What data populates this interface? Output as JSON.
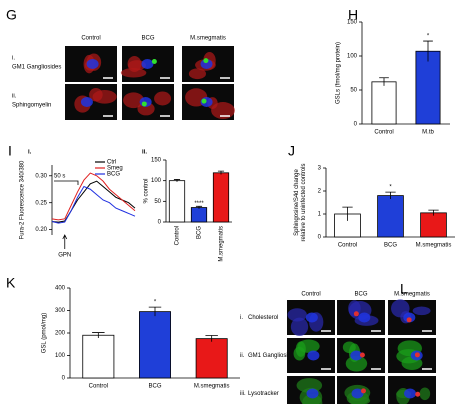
{
  "images": [
    {
      "label": "G",
      "columns": [
        "Control",
        "BCG",
        "M.smegmatis"
      ],
      "rows": [
        {
          "index": "i.",
          "name": "GM1 Gangliosides"
        },
        {
          "index": "ii.",
          "name": "Sphingomyelin"
        }
      ]
    },
    {
      "label": "L",
      "columns": [
        "Control",
        "BCG",
        "M.smegmatis"
      ],
      "rows": [
        {
          "index": "i.",
          "name": "Cholesterol"
        },
        {
          "index": "ii.",
          "name": "GM1 Gangliosides"
        },
        {
          "index": "iii.",
          "name": "Lysotracker"
        }
      ]
    }
  ],
  "chart_data": [
    {
      "type": "bar",
      "label": "H",
      "ylabel": [
        "GSLs (fmol/mg protein)"
      ],
      "categories": [
        "Control",
        "M.tb"
      ],
      "values": [
        62,
        107
      ],
      "errors": [
        6,
        15
      ],
      "colors": [
        "#ffffff",
        "#1f3fd8"
      ],
      "annotation_labels": [
        null,
        "*"
      ],
      "ylim": [
        0,
        150
      ],
      "yticks": [
        0,
        50,
        100,
        150
      ]
    },
    {
      "type": "line",
      "label": "I",
      "sublabel": "i.",
      "ylabel": [
        "Fura-2 Fluorescence 340/380"
      ],
      "x": [
        0,
        20,
        40,
        60,
        80,
        100,
        120,
        140,
        160,
        180,
        200,
        220,
        240,
        260
      ],
      "xlim": [
        0,
        260
      ],
      "series": [
        {
          "name": "Ctrl",
          "color": "#000000",
          "values": [
            0.215,
            0.214,
            0.216,
            0.235,
            0.255,
            0.27,
            0.285,
            0.29,
            0.28,
            0.27,
            0.26,
            0.255,
            0.25,
            0.24
          ]
        },
        {
          "name": "Smeg",
          "color": "#e02020",
          "values": [
            0.22,
            0.218,
            0.22,
            0.245,
            0.27,
            0.292,
            0.305,
            0.3,
            0.29,
            0.275,
            0.265,
            0.255,
            0.245,
            0.235
          ]
        },
        {
          "name": "BCG",
          "color": "#2030e0",
          "values": [
            0.215,
            0.212,
            0.214,
            0.235,
            0.26,
            0.28,
            0.275,
            0.265,
            0.255,
            0.25,
            0.24,
            0.235,
            0.23,
            0.225
          ]
        }
      ],
      "scale_label": "50 s",
      "arrow_label": "GPN",
      "ylim": [
        0.19,
        0.32
      ],
      "yticks": [
        {
          "value": 0.2,
          "label": "0.20"
        },
        0.25,
        {
          "value": 0.3,
          "label": "0.30"
        }
      ]
    },
    {
      "type": "bar",
      "sublabel": "ii.",
      "ylabel": [
        "% control"
      ],
      "categories": [
        "Control",
        "BCG",
        "M.smegmatis"
      ],
      "values": [
        100,
        35,
        119
      ],
      "errors": [
        3,
        3,
        4
      ],
      "colors": [
        "#ffffff",
        "#1f3fd8",
        "#e81818"
      ],
      "annotation_labels": [
        null,
        "****",
        null
      ],
      "ylim": [
        0,
        150
      ],
      "yticks": [
        0,
        50,
        100,
        150
      ]
    },
    {
      "type": "bar",
      "label": "J",
      "ylabel": [
        "Sphingosine/S4d change",
        "relative to uninfected controls"
      ],
      "categories": [
        "Control",
        "BCG",
        "M.smegmatis"
      ],
      "values": [
        1.0,
        1.8,
        1.05
      ],
      "errors": [
        0.3,
        0.15,
        0.12
      ],
      "colors": [
        "#ffffff",
        "#1f3fd8",
        "#e81818"
      ],
      "annotation_labels": [
        null,
        "*",
        null
      ],
      "ylim": [
        0,
        3
      ],
      "yticks": [
        0,
        1,
        2,
        3
      ]
    },
    {
      "type": "bar",
      "label": "K",
      "ylabel": [
        "GSL (pmol/mg)"
      ],
      "categories": [
        "Control",
        "BCG",
        "M.smegmatis"
      ],
      "values": [
        190,
        295,
        175
      ],
      "errors": [
        12,
        20,
        14
      ],
      "colors": [
        "#ffffff",
        "#1f3fd8",
        "#e81818"
      ],
      "annotation_labels": [
        null,
        "*",
        null
      ],
      "ylim": [
        0,
        400
      ],
      "yticks": [
        0,
        100,
        200,
        300,
        400
      ]
    }
  ]
}
